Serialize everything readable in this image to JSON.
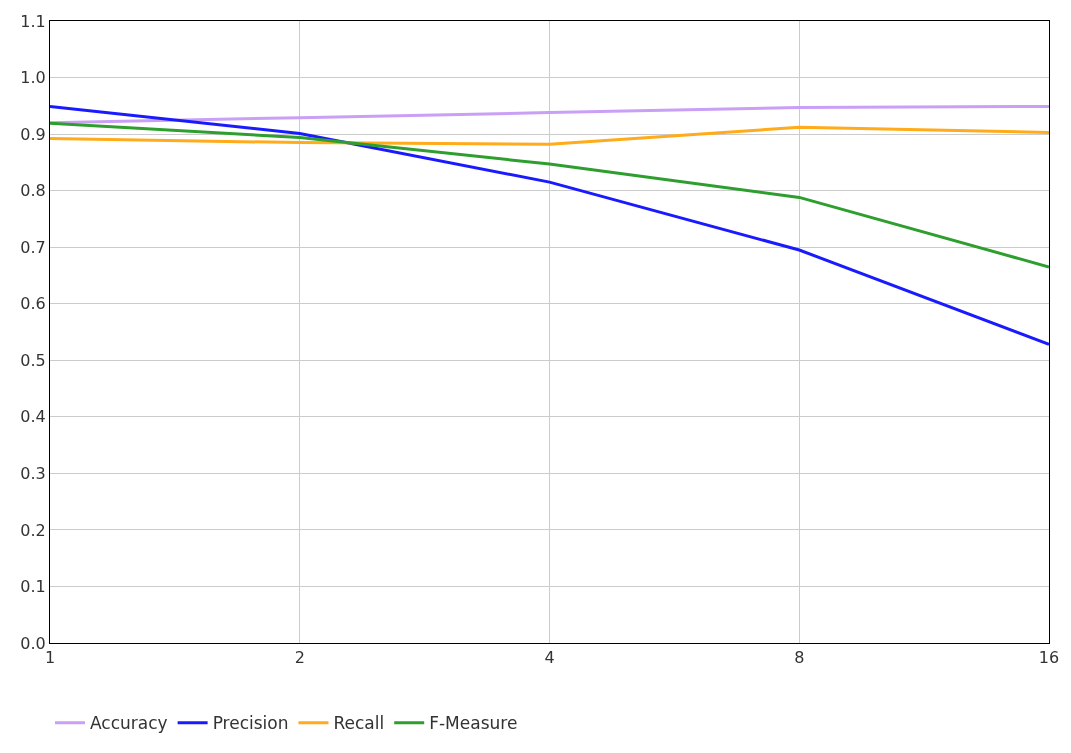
{
  "chart_data": {
    "type": "line",
    "categories": [
      "1",
      "2",
      "4",
      "8",
      "16"
    ],
    "series": [
      {
        "name": "Accuracy",
        "color": "#c9a0f5",
        "values": [
          0.92,
          0.929,
          0.938,
          0.947,
          0.949
        ]
      },
      {
        "name": "Precision",
        "color": "#1a1aff",
        "values": [
          0.949,
          0.901,
          0.815,
          0.695,
          0.528
        ]
      },
      {
        "name": "Recall",
        "color": "#ffab1a",
        "values": [
          0.892,
          0.885,
          0.882,
          0.912,
          0.903
        ]
      },
      {
        "name": "F-Measure",
        "color": "#2e9e2e",
        "values": [
          0.919,
          0.894,
          0.847,
          0.788,
          0.665
        ]
      }
    ],
    "ylim": [
      0,
      1.1
    ],
    "yticks": [
      {
        "value": 0,
        "label": "0.0"
      },
      0.1,
      0.2,
      0.3,
      0.4,
      0.5,
      0.6,
      0.7,
      0.8,
      0.9,
      {
        "value": 1.0,
        "label": "1.0"
      },
      1.1
    ],
    "grid": true,
    "legend": "bottom left",
    "marker": "none",
    "line_style": "solid"
  }
}
